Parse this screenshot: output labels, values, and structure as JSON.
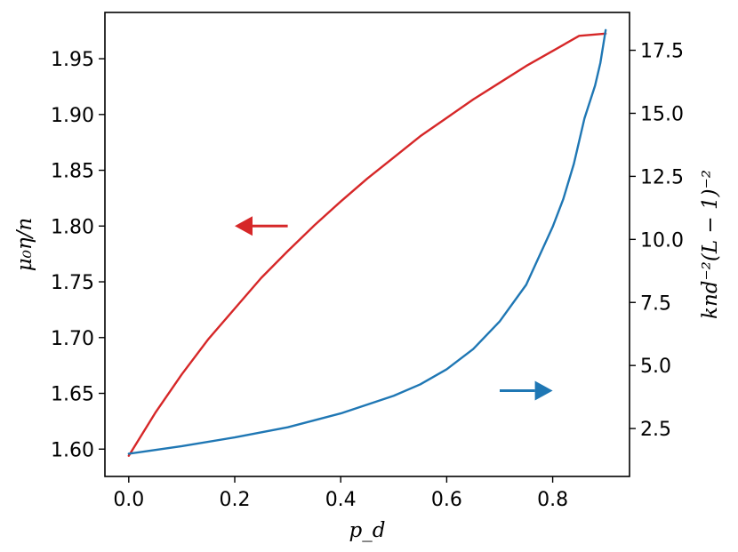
{
  "chart_data": {
    "type": "line",
    "xlabel": "p_d",
    "ylabel_left": "μ₀η/n",
    "ylabel_right": "knd⁻²(L − 1)⁻²",
    "xlim": [
      -0.045,
      0.945
    ],
    "ylim_left": [
      1.5755,
      1.9915
    ],
    "ylim_right": [
      0.6,
      19.0
    ],
    "x_ticks": [
      "0.0",
      "0.2",
      "0.4",
      "0.6",
      "0.8"
    ],
    "x_tick_values": [
      0.0,
      0.2,
      0.4,
      0.6,
      0.8
    ],
    "y_left_ticks": [
      "1.60",
      "1.65",
      "1.70",
      "1.75",
      "1.80",
      "1.85",
      "1.90",
      "1.95"
    ],
    "y_left_tick_values": [
      1.6,
      1.65,
      1.7,
      1.75,
      1.8,
      1.85,
      1.9,
      1.95
    ],
    "y_right_ticks": [
      "2.5",
      "5.0",
      "7.5",
      "10.0",
      "12.5",
      "15.0",
      "17.5"
    ],
    "y_right_tick_values": [
      2.5,
      5.0,
      7.5,
      10.0,
      12.5,
      15.0,
      17.5
    ],
    "series": [
      {
        "axis": "left",
        "color": "#d62728",
        "x": [
          0.0,
          0.05,
          0.1,
          0.15,
          0.2,
          0.25,
          0.3,
          0.35,
          0.4,
          0.45,
          0.5,
          0.55,
          0.6,
          0.65,
          0.7,
          0.75,
          0.8,
          0.85,
          0.9
        ],
        "y": [
          1.594,
          1.6325,
          1.667,
          1.6985,
          1.726,
          1.7535,
          1.7775,
          1.8005,
          1.822,
          1.8425,
          1.8615,
          1.8805,
          1.897,
          1.9135,
          1.9285,
          1.9435,
          1.957,
          1.9705,
          1.9725
        ]
      },
      {
        "axis": "right",
        "color": "#1f77b4",
        "x": [
          0.0,
          0.1,
          0.2,
          0.3,
          0.4,
          0.5,
          0.55,
          0.6,
          0.65,
          0.7,
          0.75,
          0.8,
          0.82,
          0.84,
          0.86,
          0.88,
          0.89,
          0.9
        ],
        "y": [
          1.5,
          1.8,
          2.15,
          2.55,
          3.1,
          3.8,
          4.25,
          4.85,
          5.65,
          6.75,
          8.2,
          10.5,
          11.6,
          13.0,
          14.8,
          16.1,
          17.0,
          18.3
        ]
      }
    ],
    "annotations": [
      {
        "name": "left-axis-arrow",
        "color": "#d62728",
        "x_from": 0.3,
        "x_to": 0.2,
        "y": 1.8,
        "axis": "left",
        "direction": "left"
      },
      {
        "name": "right-axis-arrow",
        "color": "#1f77b4",
        "x_from": 0.7,
        "x_to": 0.8,
        "y": 4.0,
        "axis": "right",
        "direction": "right"
      }
    ]
  }
}
